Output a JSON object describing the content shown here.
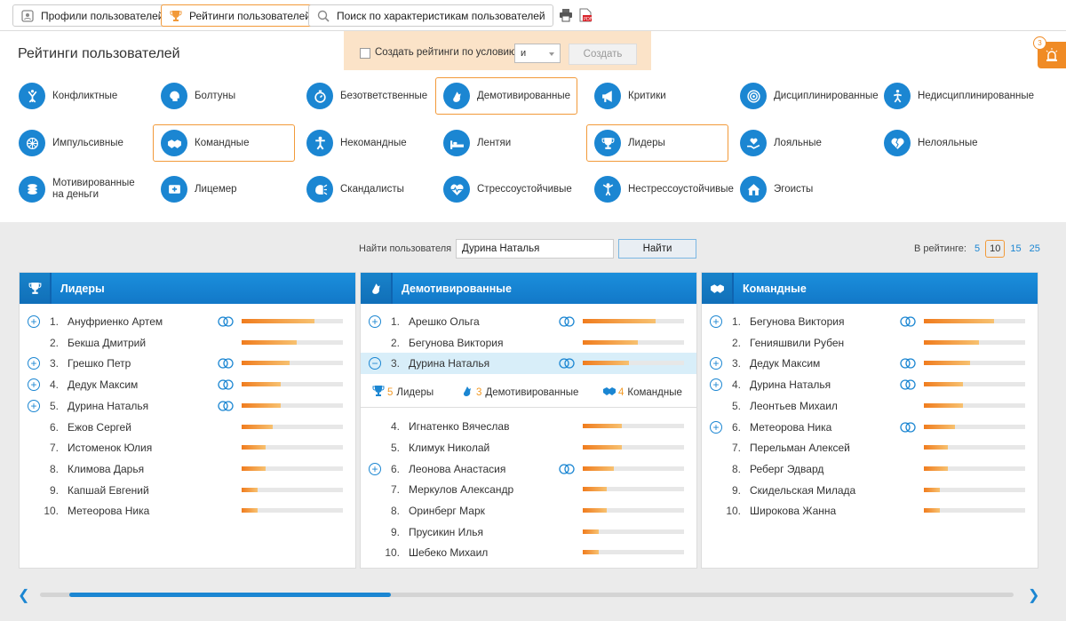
{
  "toolbar": {
    "tabs": [
      {
        "label": "Профили пользователей",
        "icon": "profile-icon",
        "active": false
      },
      {
        "label": "Рейтинги пользователей",
        "icon": "trophy-icon",
        "active": true
      },
      {
        "label": "Поиск по характеристикам пользователей",
        "icon": "search-icon",
        "active": false
      }
    ],
    "tools": [
      "print-icon",
      "pdf-export-icon"
    ]
  },
  "page_title": "Рейтинги пользователей",
  "condition": {
    "checkbox_label": "Создать рейтинги по условию:",
    "operator": "и",
    "create_label": "Создать"
  },
  "notifications": {
    "count": "3",
    "icon": "alarm-icon"
  },
  "categories": [
    {
      "label": "Конфликтные",
      "icon": "conflict-icon",
      "selected": false
    },
    {
      "label": "Болтуны",
      "icon": "talker-icon",
      "selected": false
    },
    {
      "label": "Безответственные",
      "icon": "stopwatch-icon",
      "selected": false
    },
    {
      "label": "Демотивированные",
      "icon": "demotivated-icon",
      "selected": true
    },
    {
      "label": "Критики",
      "icon": "megaphone-icon",
      "selected": false
    },
    {
      "label": "Дисциплинированные",
      "icon": "target-icon",
      "selected": false
    },
    {
      "label": "Недисциплинированные",
      "icon": "undisciplined-icon",
      "selected": false
    },
    {
      "label": "Импульсивные",
      "icon": "impulse-icon",
      "selected": false
    },
    {
      "label": "Командные",
      "icon": "handshake-icon",
      "selected": true
    },
    {
      "label": "Некомандные",
      "icon": "person-icon",
      "selected": false
    },
    {
      "label": "Лентяи",
      "icon": "bed-icon",
      "selected": false
    },
    {
      "label": "Лидеры",
      "icon": "trophy-icon",
      "selected": true
    },
    {
      "label": "Лояльные",
      "icon": "heart-hand-icon",
      "selected": false
    },
    {
      "label": "Нелояльные",
      "icon": "broken-heart-icon",
      "selected": false
    },
    {
      "label": "Мотивированные на деньги",
      "icon": "coins-icon",
      "selected": false
    },
    {
      "label": "Лицемер",
      "icon": "mask-icon",
      "selected": false
    },
    {
      "label": "Скандалисты",
      "icon": "shout-icon",
      "selected": false
    },
    {
      "label": "Стрессоустойчивые",
      "icon": "heartbeat-icon",
      "selected": false
    },
    {
      "label": "Нестрессоустойчивые",
      "icon": "stressed-icon",
      "selected": false
    },
    {
      "label": "Эгоисты",
      "icon": "house-icon",
      "selected": false
    }
  ],
  "search": {
    "label": "Найти пользователя",
    "value": "Дурина Наталья",
    "button": "Найти"
  },
  "rating_size": {
    "label": "В рейтинге:",
    "options": [
      "5",
      "10",
      "15",
      "25"
    ],
    "selected": "10"
  },
  "panels": [
    {
      "title": "Лидеры",
      "icon": "trophy-icon",
      "rows": [
        {
          "n": "1.",
          "name": "Ануфриенко Артем",
          "plus": true,
          "overlap": true,
          "level": 0.72
        },
        {
          "n": "2.",
          "name": "Бекша Дмитрий",
          "plus": false,
          "overlap": false,
          "level": 0.54
        },
        {
          "n": "3.",
          "name": "Грешко Петр",
          "plus": true,
          "overlap": true,
          "level": 0.47
        },
        {
          "n": "4.",
          "name": "Дедук Максим",
          "plus": true,
          "overlap": true,
          "level": 0.39
        },
        {
          "n": "5.",
          "name": "Дурина Наталья",
          "plus": true,
          "overlap": true,
          "level": 0.39
        },
        {
          "n": "6.",
          "name": "Ежов Сергей",
          "plus": false,
          "overlap": false,
          "level": 0.31
        },
        {
          "n": "7.",
          "name": "Истоменок Юлия",
          "plus": false,
          "overlap": false,
          "level": 0.24
        },
        {
          "n": "8.",
          "name": "Климова Дарья",
          "plus": false,
          "overlap": false,
          "level": 0.24
        },
        {
          "n": "9.",
          "name": "Капшай Евгений",
          "plus": false,
          "overlap": false,
          "level": 0.16
        },
        {
          "n": "10.",
          "name": "Метеорова Ника",
          "plus": false,
          "overlap": false,
          "level": 0.16
        }
      ]
    },
    {
      "title": "Демотивированные",
      "icon": "demotivated-icon",
      "rows": [
        {
          "n": "1.",
          "name": "Арешко Ольга",
          "plus": true,
          "overlap": true,
          "level": 0.72
        },
        {
          "n": "2.",
          "name": "Бегунова Виктория",
          "plus": false,
          "overlap": false,
          "level": 0.54
        },
        {
          "n": "3.",
          "name": "Дурина Наталья",
          "plus": false,
          "minus": true,
          "overlap": true,
          "level": 0.46,
          "highlight": true
        },
        {
          "n": "4.",
          "name": "Игнатенко Вячеслав",
          "plus": false,
          "overlap": false,
          "level": 0.39
        },
        {
          "n": "5.",
          "name": "Климук Николай",
          "plus": false,
          "overlap": false,
          "level": 0.39
        },
        {
          "n": "6.",
          "name": "Леонова Анастасия",
          "plus": true,
          "overlap": true,
          "level": 0.31
        },
        {
          "n": "7.",
          "name": "Меркулов Александр",
          "plus": false,
          "overlap": false,
          "level": 0.24
        },
        {
          "n": "8.",
          "name": "Оринберг Марк",
          "plus": false,
          "overlap": false,
          "level": 0.24
        },
        {
          "n": "9.",
          "name": "Прусикин Илья",
          "plus": false,
          "overlap": false,
          "level": 0.16
        },
        {
          "n": "10.",
          "name": "Шебеко Михаил",
          "plus": false,
          "overlap": false,
          "level": 0.16
        }
      ],
      "summary": [
        {
          "icon": "trophy-icon",
          "count": "5",
          "label": "Лидеры"
        },
        {
          "icon": "demotivated-icon",
          "count": "3",
          "label": "Демотивированные"
        },
        {
          "icon": "handshake-icon",
          "count": "4",
          "label": "Командные"
        }
      ]
    },
    {
      "title": "Командные",
      "icon": "handshake-icon",
      "rows": [
        {
          "n": "1.",
          "name": "Бегунова Виктория",
          "plus": true,
          "overlap": true,
          "level": 0.69
        },
        {
          "n": "2.",
          "name": "Генияшвили Рубен",
          "plus": false,
          "overlap": false,
          "level": 0.54
        },
        {
          "n": "3.",
          "name": "Дедук Максим",
          "plus": true,
          "overlap": true,
          "level": 0.46
        },
        {
          "n": "4.",
          "name": "Дурина Наталья",
          "plus": true,
          "overlap": true,
          "level": 0.39
        },
        {
          "n": "5.",
          "name": "Леонтьев Михаил",
          "plus": false,
          "overlap": false,
          "level": 0.39
        },
        {
          "n": "6.",
          "name": "Метеорова Ника",
          "plus": true,
          "overlap": true,
          "level": 0.31
        },
        {
          "n": "7.",
          "name": "Перельман Алексей",
          "plus": false,
          "overlap": false,
          "level": 0.24
        },
        {
          "n": "8.",
          "name": "Реберг Эдвард",
          "plus": false,
          "overlap": false,
          "level": 0.24
        },
        {
          "n": "9.",
          "name": "Скидельская Милада",
          "plus": false,
          "overlap": false,
          "level": 0.16
        },
        {
          "n": "10.",
          "name": "Широкова Жанна",
          "plus": false,
          "overlap": false,
          "level": 0.16
        }
      ]
    }
  ],
  "colors": {
    "accent": "#1b86d2",
    "highlight": "#f29a3a",
    "bar": "#f07c1e"
  },
  "scroll": {
    "position": 0.03,
    "visible": 0.33
  }
}
